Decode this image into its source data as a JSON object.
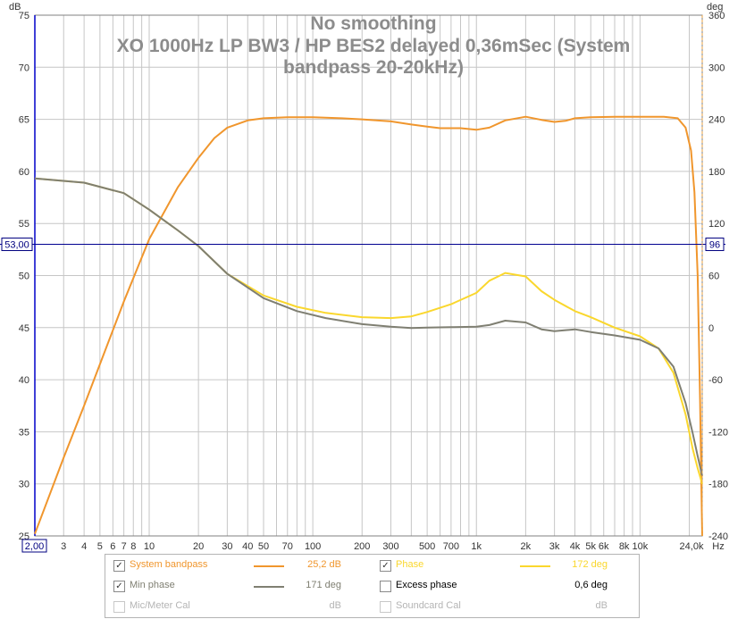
{
  "chart_data": {
    "type": "line",
    "title": [
      "No smoothing",
      "XO 1000Hz LP BW3 / HP BES2 delayed 0,36mSec (System",
      "bandpass 20-20kHz)"
    ],
    "x_axis": {
      "scale": "log",
      "range": [
        2,
        24000
      ],
      "unit": "Hz",
      "tick_labels": [
        {
          "value": 3,
          "label": "3"
        },
        {
          "value": 4,
          "label": "4"
        },
        {
          "value": 5,
          "label": "5"
        },
        {
          "value": 6,
          "label": "6"
        },
        {
          "value": 7,
          "label": "7"
        },
        {
          "value": 8,
          "label": "8"
        },
        {
          "value": 10,
          "label": "10"
        },
        {
          "value": 20,
          "label": "20"
        },
        {
          "value": 30,
          "label": "30"
        },
        {
          "value": 40,
          "label": "40"
        },
        {
          "value": 50,
          "label": "50"
        },
        {
          "value": 70,
          "label": "70"
        },
        {
          "value": 100,
          "label": "100"
        },
        {
          "value": 200,
          "label": "200"
        },
        {
          "value": 300,
          "label": "300"
        },
        {
          "value": 500,
          "label": "500"
        },
        {
          "value": 700,
          "label": "700"
        },
        {
          "value": 1000,
          "label": "1k"
        },
        {
          "value": 2000,
          "label": "2k"
        },
        {
          "value": 3000,
          "label": "3k"
        },
        {
          "value": 4000,
          "label": "4k"
        },
        {
          "value": 5000,
          "label": "5k"
        },
        {
          "value": 6000,
          "label": "6k"
        },
        {
          "value": 8000,
          "label": "8k"
        },
        {
          "value": 10000,
          "label": "10k"
        }
      ],
      "start_label": "2,00",
      "end_label": "24,0k"
    },
    "y_left": {
      "unit": "dB",
      "range": [
        25,
        75
      ],
      "ticks": [
        25,
        30,
        35,
        40,
        45,
        50,
        55,
        60,
        65,
        70,
        75
      ]
    },
    "y_right": {
      "unit": "deg",
      "range": [
        -240,
        360
      ],
      "ticks": [
        -240,
        -180,
        -120,
        -60,
        0,
        60,
        120,
        180,
        240,
        300,
        360
      ]
    },
    "cursor": {
      "left_label": "53,00",
      "right_label": "96",
      "value_db": 53
    },
    "grid": true,
    "series": [
      {
        "name": "System bandpass",
        "axis": "left",
        "color": "#f0962d",
        "points": [
          [
            2,
            25.2
          ],
          [
            3,
            32.5
          ],
          [
            4,
            37.5
          ],
          [
            5,
            41.5
          ],
          [
            7,
            47.5
          ],
          [
            10,
            53.5
          ],
          [
            15,
            58.5
          ],
          [
            20,
            61.3
          ],
          [
            25,
            63.2
          ],
          [
            30,
            64.2
          ],
          [
            40,
            64.9
          ],
          [
            50,
            65.1
          ],
          [
            70,
            65.2
          ],
          [
            100,
            65.2
          ],
          [
            150,
            65.1
          ],
          [
            200,
            65.0
          ],
          [
            300,
            64.8
          ],
          [
            400,
            64.5
          ],
          [
            500,
            64.3
          ],
          [
            600,
            64.15
          ],
          [
            800,
            64.15
          ],
          [
            1000,
            64.0
          ],
          [
            1200,
            64.2
          ],
          [
            1500,
            64.9
          ],
          [
            2000,
            65.25
          ],
          [
            2500,
            64.95
          ],
          [
            3000,
            64.75
          ],
          [
            3500,
            64.85
          ],
          [
            4000,
            65.1
          ],
          [
            5000,
            65.2
          ],
          [
            7000,
            65.25
          ],
          [
            10000,
            65.25
          ],
          [
            14000,
            65.25
          ],
          [
            17000,
            65.1
          ],
          [
            19000,
            64.2
          ],
          [
            20500,
            62.0
          ],
          [
            21500,
            58.0
          ],
          [
            22500,
            50.0
          ],
          [
            23300,
            38.0
          ],
          [
            23700,
            30.0
          ],
          [
            24000,
            25.0
          ]
        ]
      },
      {
        "name": "Phase",
        "axis": "right",
        "color": "#fad72d",
        "points": [
          [
            2,
            172
          ],
          [
            4,
            167
          ],
          [
            7,
            155
          ],
          [
            10,
            136
          ],
          [
            15,
            112
          ],
          [
            20,
            94
          ],
          [
            30,
            62
          ],
          [
            50,
            37
          ],
          [
            80,
            24
          ],
          [
            120,
            17
          ],
          [
            200,
            12
          ],
          [
            300,
            11
          ],
          [
            400,
            13
          ],
          [
            500,
            18
          ],
          [
            700,
            27
          ],
          [
            1000,
            40
          ],
          [
            1200,
            54
          ],
          [
            1500,
            63
          ],
          [
            2000,
            59
          ],
          [
            2500,
            42
          ],
          [
            3000,
            32
          ],
          [
            4000,
            19
          ],
          [
            5000,
            12
          ],
          [
            7000,
            0
          ],
          [
            10000,
            -10
          ],
          [
            13000,
            -24
          ],
          [
            16000,
            -52
          ],
          [
            19000,
            -100
          ],
          [
            21000,
            -140
          ],
          [
            22500,
            -162
          ],
          [
            24000,
            -180
          ]
        ]
      },
      {
        "name": "Min phase",
        "axis": "right",
        "color": "#7f7f72",
        "points": [
          [
            2,
            172
          ],
          [
            4,
            167
          ],
          [
            7,
            155
          ],
          [
            10,
            136
          ],
          [
            15,
            112
          ],
          [
            20,
            94
          ],
          [
            30,
            62
          ],
          [
            50,
            34
          ],
          [
            80,
            19
          ],
          [
            120,
            11
          ],
          [
            200,
            4
          ],
          [
            300,
            1
          ],
          [
            400,
            -0.5
          ],
          [
            500,
            0
          ],
          [
            700,
            0.5
          ],
          [
            1000,
            1
          ],
          [
            1200,
            3
          ],
          [
            1500,
            8
          ],
          [
            2000,
            6
          ],
          [
            2500,
            -2
          ],
          [
            3000,
            -4
          ],
          [
            4000,
            -2
          ],
          [
            5000,
            -5
          ],
          [
            7000,
            -9
          ],
          [
            10000,
            -14
          ],
          [
            13000,
            -24
          ],
          [
            16000,
            -45
          ],
          [
            19000,
            -87
          ],
          [
            21000,
            -122
          ],
          [
            22500,
            -148
          ],
          [
            24000,
            -171
          ]
        ]
      }
    ]
  },
  "legend": {
    "rows": [
      [
        {
          "checked": true,
          "enabled": true,
          "label": "System bandpass",
          "color": "#f0962d",
          "value": "25,2 dB"
        },
        {
          "checked": true,
          "enabled": true,
          "label": "Phase",
          "color": "#fad72d",
          "value": "172 deg"
        }
      ],
      [
        {
          "checked": true,
          "enabled": true,
          "label": "Min phase",
          "color": "#7f7f72",
          "value": "171 deg"
        },
        {
          "checked": false,
          "enabled": true,
          "label": "Excess phase",
          "color": "",
          "value": "0,6 deg"
        }
      ],
      [
        {
          "checked": false,
          "enabled": false,
          "label": "Mic/Meter Cal",
          "color": "",
          "value": "dB"
        },
        {
          "checked": false,
          "enabled": false,
          "label": "Soundcard Cal",
          "color": "",
          "value": "dB"
        }
      ]
    ]
  }
}
